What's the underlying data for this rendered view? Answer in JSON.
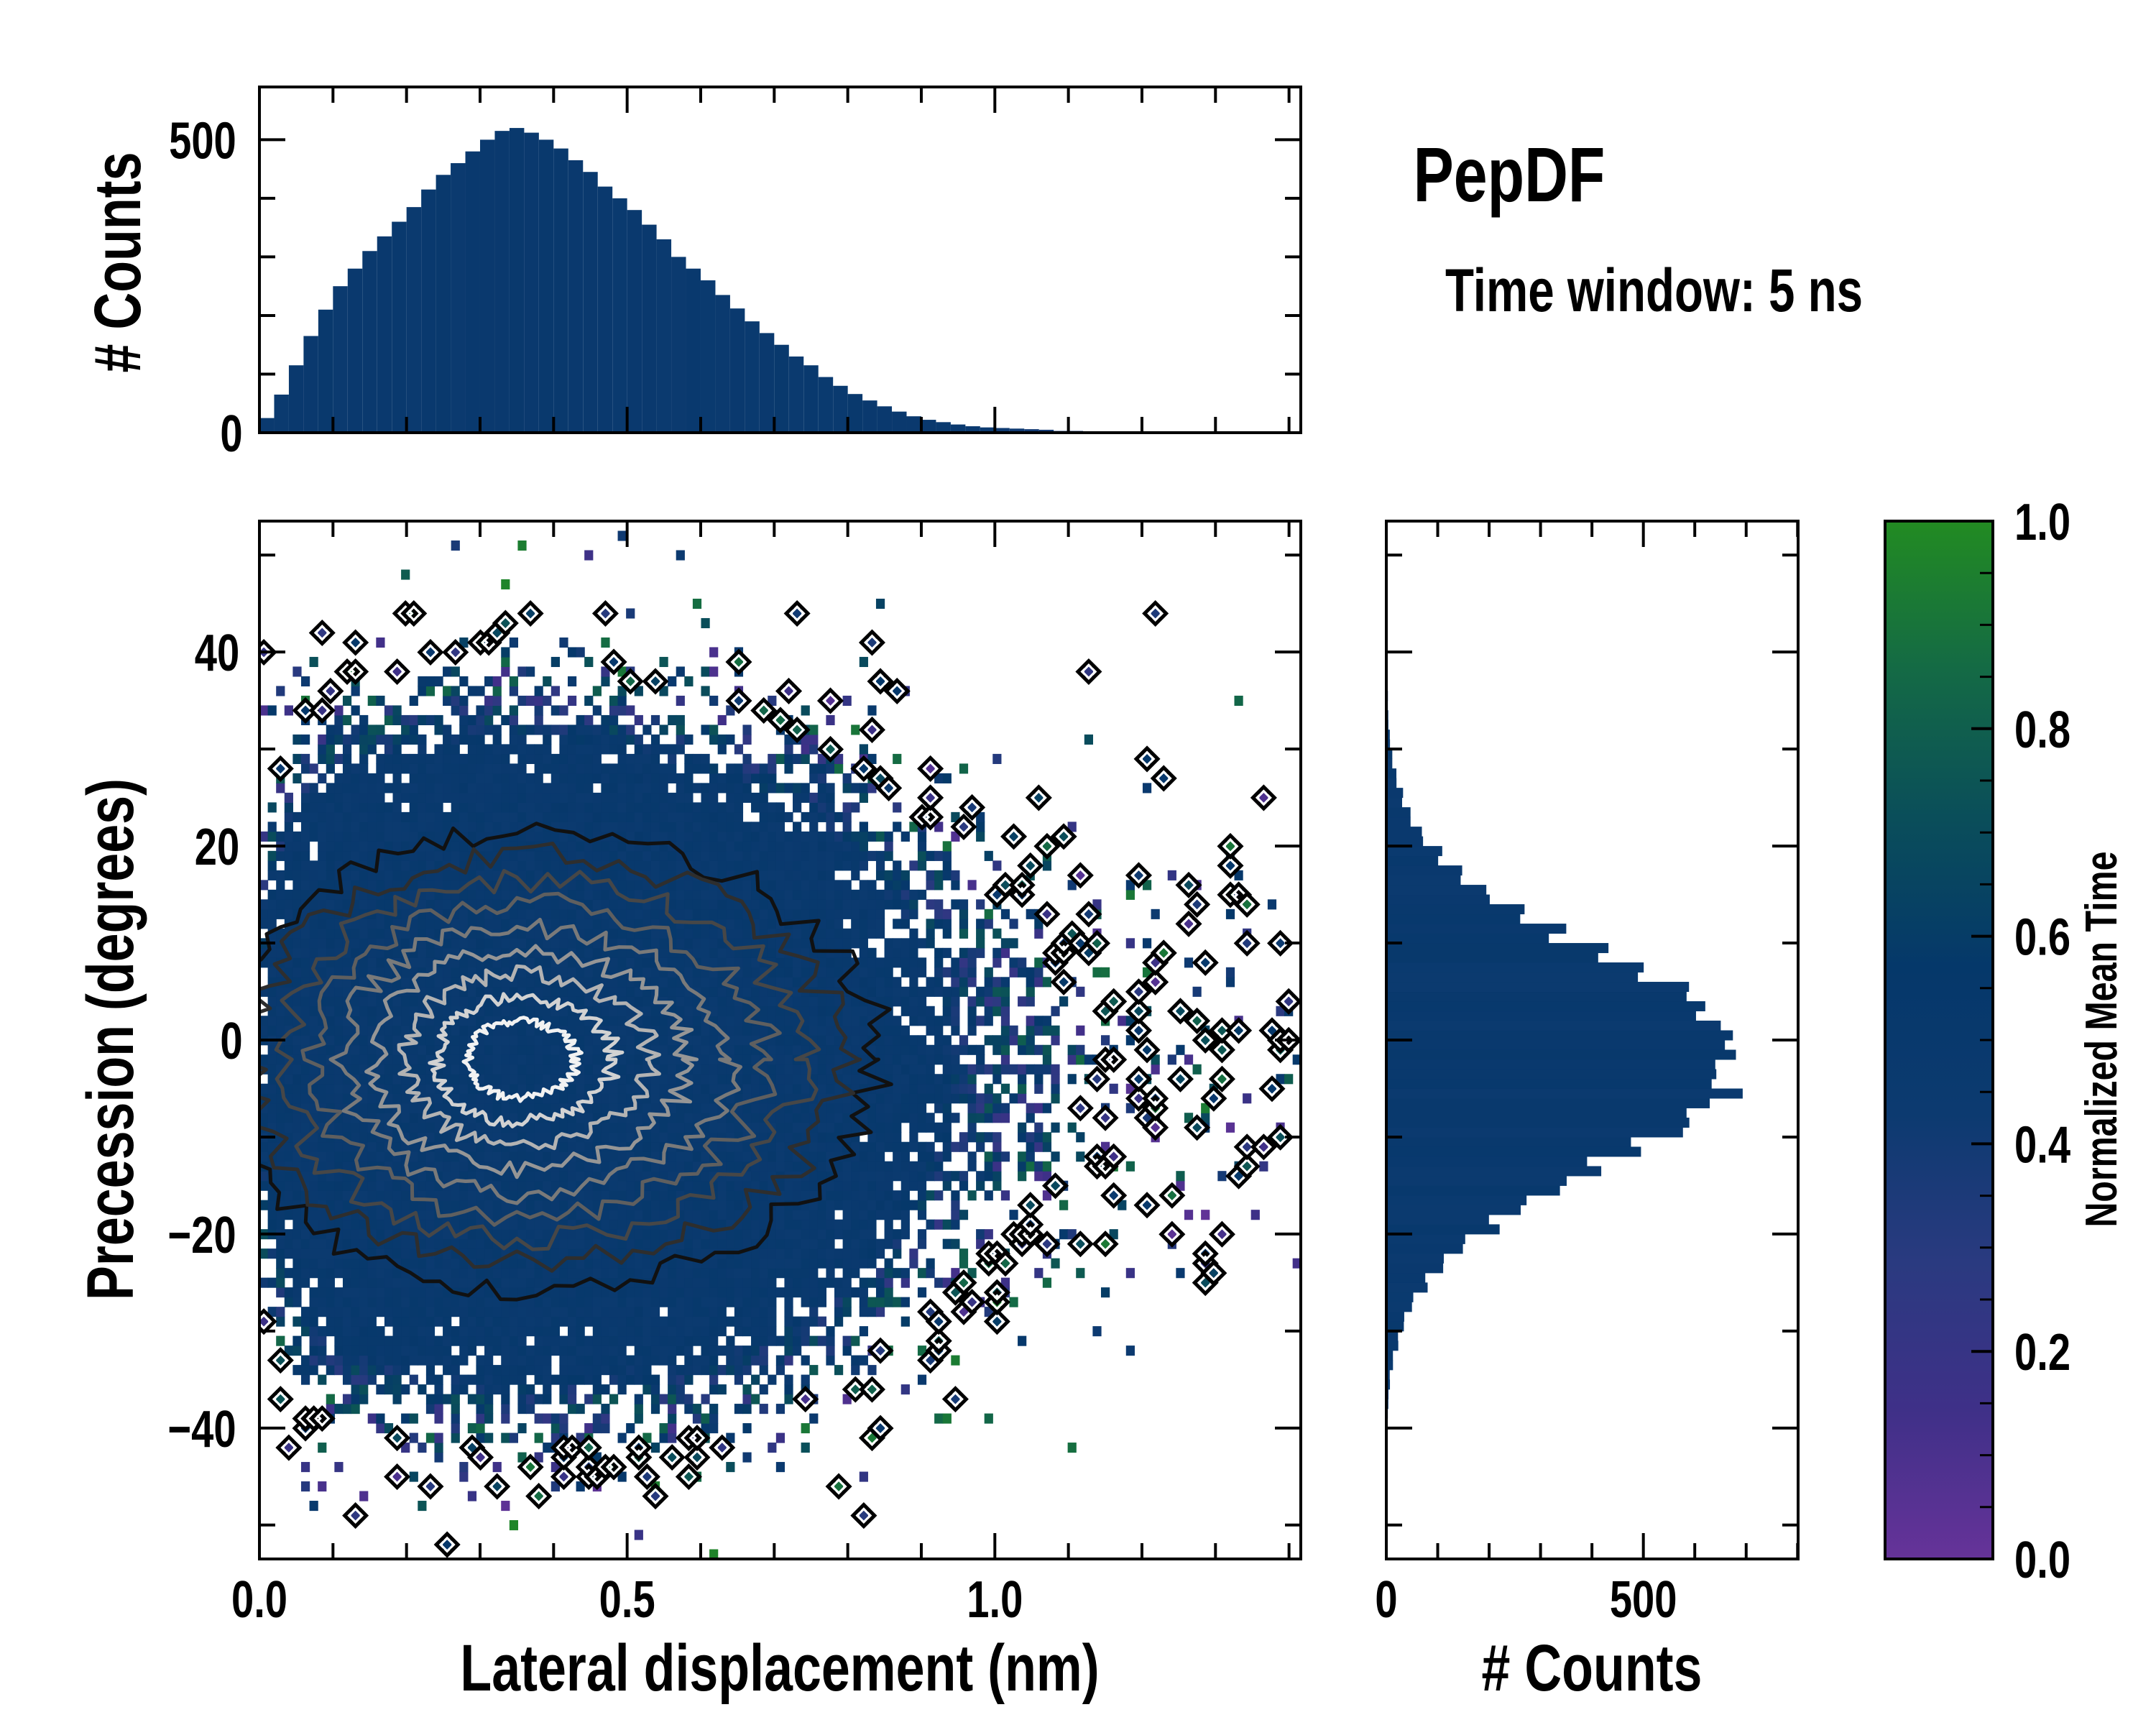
{
  "chart_data": {
    "type": "heatmap",
    "title": "PepDF",
    "subtitle": "Time window: 5 ns",
    "main": {
      "xlabel": "Lateral displacement (nm)",
      "ylabel": "Precession (degrees)",
      "xlim": [
        0.0,
        1.416
      ],
      "ylim": [
        -53.5,
        53.5
      ],
      "xticks": [
        "0.0",
        "0.5",
        "1.0"
      ],
      "xtick_values": [
        0.0,
        0.5,
        1.0
      ],
      "yticks": [
        "−40",
        "−20",
        "0",
        "20",
        "40"
      ],
      "ytick_values": [
        -40,
        -20,
        0,
        20,
        40
      ],
      "density_center": [
        0.35,
        -2
      ],
      "precession_sigma": 13,
      "contour_colors": [
        "#111111",
        "#2e2e2e",
        "#474747",
        "#5f5f5f",
        "#7a7a7a",
        "#969696",
        "#b3b3b3",
        "#d2d2d2",
        "#f2f2f2"
      ]
    },
    "top_hist": {
      "ylabel": "# Counts",
      "ylim": [
        0,
        590
      ],
      "yticks": [
        "0",
        "500"
      ],
      "ytick_values": [
        0,
        500
      ],
      "bin_width": 0.02,
      "bin_start": 0.0,
      "counts": [
        25,
        65,
        115,
        165,
        210,
        250,
        280,
        310,
        335,
        360,
        385,
        415,
        440,
        460,
        480,
        500,
        515,
        520,
        512,
        500,
        485,
        465,
        445,
        420,
        400,
        380,
        355,
        330,
        300,
        280,
        260,
        235,
        212,
        190,
        170,
        150,
        130,
        115,
        95,
        80,
        66,
        55,
        45,
        36,
        28,
        22,
        18,
        14,
        11,
        9,
        8,
        7,
        6,
        5,
        3,
        3,
        2,
        2,
        1,
        1,
        1,
        0,
        0,
        1,
        0,
        0,
        0,
        0,
        0,
        0,
        0
      ]
    },
    "right_hist": {
      "xlabel": "# Counts",
      "xlim": [
        0,
        801
      ],
      "xticks": [
        "0",
        "500"
      ],
      "xtick_values": [
        0,
        500
      ],
      "bin_width": 2,
      "bin_start": -50,
      "counts": [
        0,
        1,
        1,
        2,
        1,
        3,
        4,
        7,
        13,
        22,
        33,
        52,
        78,
        112,
        158,
        212,
        270,
        340,
        415,
        490,
        558,
        612,
        658,
        680,
        676,
        655,
        615,
        560,
        485,
        410,
        335,
        262,
        205,
        150,
        106,
        72,
        48,
        31,
        19,
        12,
        7,
        4,
        3,
        2,
        1,
        1,
        1,
        0,
        0,
        0
      ]
    },
    "colorbar": {
      "label": "Normalized Mean Time",
      "ticks": [
        "0.0",
        "0.2",
        "0.4",
        "0.6",
        "0.8",
        "1.0"
      ],
      "tick_values": [
        0.0,
        0.2,
        0.4,
        0.6,
        0.8,
        1.0
      ],
      "range": [
        0.0,
        1.0
      ],
      "colors": [
        "#663399",
        "#3f3088",
        "#2a3a80",
        "#0c3a70",
        "#05386a",
        "#0a4e5a",
        "#146a45",
        "#228b22"
      ]
    }
  }
}
